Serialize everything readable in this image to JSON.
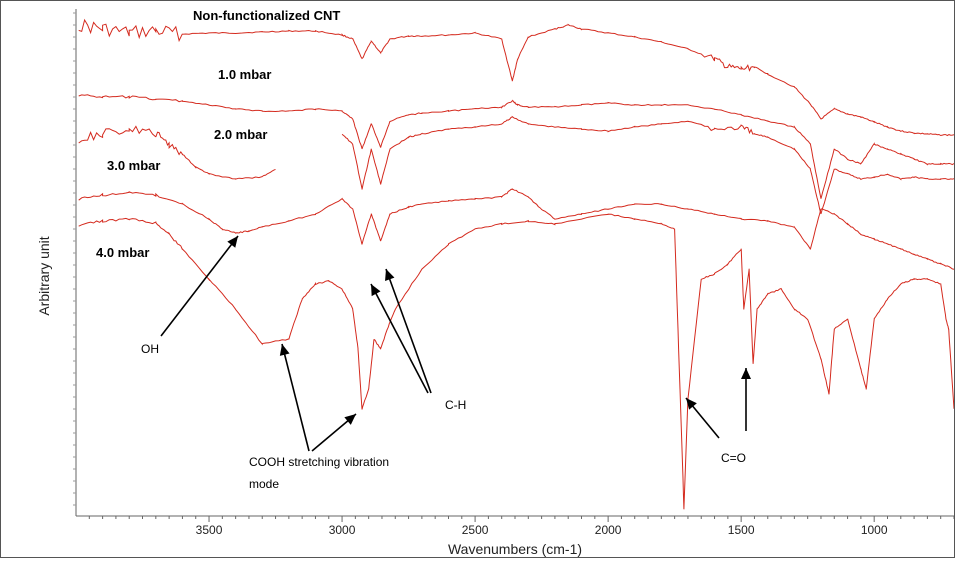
{
  "chart_data": {
    "type": "line",
    "title": "",
    "xlabel": "Wavenumbers (cm-1)",
    "ylabel": "Arbitrary unit",
    "xlim": [
      4000,
      700
    ],
    "x_reversed": true,
    "x_ticks": [
      "3500",
      "3000",
      "2500",
      "2000",
      "1500",
      "1000"
    ],
    "x_tick_values": [
      3500,
      3000,
      2500,
      2000,
      1500,
      1000
    ],
    "y_ticks_shown": false,
    "grid": false,
    "line_color": "#d42a1e",
    "series": [
      {
        "name": "Non-functionalized CNT",
        "x": [
          3990,
          3900,
          3800,
          3700,
          3600,
          3500,
          3400,
          3300,
          3200,
          3100,
          3000,
          2960,
          2925,
          2890,
          2855,
          2820,
          2750,
          2700,
          2600,
          2500,
          2400,
          2360,
          2340,
          2300,
          2200,
          2150,
          2100,
          2000,
          1900,
          1800,
          1700,
          1600,
          1550,
          1500,
          1450,
          1400,
          1300,
          1240,
          1200,
          1150,
          1100,
          1050,
          1000,
          950,
          900,
          850,
          800,
          750,
          700
        ],
        "y": [
          16,
          20,
          24,
          22,
          25,
          24,
          24,
          23,
          22,
          22,
          26,
          30,
          50,
          32,
          44,
          30,
          27,
          27,
          26,
          24,
          30,
          72,
          50,
          28,
          20,
          16,
          20,
          24,
          28,
          33,
          40,
          50,
          58,
          60,
          58,
          65,
          78,
          95,
          110,
          100,
          105,
          108,
          113,
          118,
          122,
          124,
          125,
          126,
          126
        ]
      },
      {
        "name": "1.0 mbar",
        "x": [
          3990,
          3900,
          3800,
          3700,
          3600,
          3500,
          3400,
          3300,
          3200,
          3100,
          3000,
          2960,
          2925,
          2890,
          2855,
          2820,
          2750,
          2700,
          2600,
          2500,
          2400,
          2360,
          2340,
          2300,
          2200,
          2100,
          2000,
          1900,
          1800,
          1700,
          1600,
          1500,
          1400,
          1300,
          1240,
          1200,
          1150,
          1100,
          1050,
          1000,
          950,
          900,
          850,
          800,
          750,
          700
        ],
        "y": [
          86,
          88,
          88,
          90,
          92,
          96,
          100,
          102,
          102,
          100,
          102,
          110,
          140,
          115,
          138,
          112,
          106,
          104,
          102,
          100,
          98,
          92,
          96,
          98,
          98,
          96,
          94,
          96,
          96,
          96,
          100,
          106,
          112,
          118,
          135,
          190,
          140,
          150,
          155,
          135,
          140,
          145,
          150,
          155,
          155,
          155
        ]
      },
      {
        "name": "2.0 mbar",
        "x": [
          3990,
          3900,
          3800,
          3700,
          3650,
          3600,
          3550,
          3500,
          3400,
          3300,
          3250,
          3150,
          3000,
          2960,
          2925,
          2890,
          2855,
          2820,
          2750,
          2700,
          2600,
          2500,
          2400,
          2360,
          2300,
          2200,
          2100,
          2000,
          1900,
          1800,
          1700,
          1600,
          1500,
          1450,
          1400,
          1300,
          1240,
          1200,
          1150,
          1100,
          1050,
          1000,
          950,
          900,
          850,
          800,
          750,
          700
        ],
        "y": [
          130,
          125,
          120,
          125,
          135,
          145,
          158,
          165,
          170,
          168,
          160,
          null,
          125,
          135,
          180,
          140,
          175,
          140,
          128,
          125,
          120,
          118,
          115,
          108,
          115,
          118,
          120,
          122,
          118,
          115,
          112,
          120,
          118,
          125,
          128,
          140,
          160,
          205,
          160,
          165,
          170,
          168,
          165,
          170,
          168,
          170,
          170,
          170
        ]
      },
      {
        "name": "3.0 mbar",
        "x": [
          3990,
          3900,
          3800,
          3700,
          3600,
          3500,
          3450,
          3400,
          3350,
          3300,
          3200,
          3100,
          3000,
          2960,
          2925,
          2890,
          2855,
          2820,
          2750,
          2700,
          2600,
          2500,
          2400,
          2360,
          2300,
          2250,
          2200,
          2100,
          2000,
          1900,
          1800,
          1700,
          1600,
          1500,
          1400,
          1300,
          1240,
          1200,
          1150,
          1100,
          1050,
          1000,
          950,
          900,
          850,
          800,
          750,
          700
        ],
        "y": [
          190,
          186,
          184,
          186,
          195,
          210,
          220,
          224,
          222,
          218,
          212,
          205,
          190,
          200,
          235,
          205,
          232,
          205,
          198,
          195,
          192,
          190,
          188,
          180,
          188,
          200,
          210,
          205,
          200,
          195,
          195,
          200,
          205,
          210,
          212,
          218,
          240,
          200,
          205,
          215,
          225,
          230,
          235,
          240,
          245,
          250,
          255,
          260
        ]
      },
      {
        "name": "4.0 mbar",
        "x": [
          3990,
          3900,
          3800,
          3700,
          3650,
          3600,
          3500,
          3400,
          3300,
          3200,
          3150,
          3100,
          3050,
          3000,
          2960,
          2940,
          2925,
          2900,
          2880,
          2855,
          2830,
          2800,
          2700,
          2600,
          2500,
          2400,
          2300,
          2200,
          2000,
          1900,
          1800,
          1750,
          1730,
          1715,
          1700,
          1650,
          1600,
          1550,
          1500,
          1490,
          1470,
          1455,
          1440,
          1400,
          1350,
          1300,
          1250,
          1200,
          1170,
          1150,
          1100,
          1050,
          1030,
          1000,
          950,
          900,
          850,
          800,
          750,
          730,
          720,
          700
        ],
        "y": [
          216,
          212,
          210,
          214,
          225,
          240,
          270,
          300,
          335,
          330,
          290,
          275,
          272,
          280,
          300,
          340,
          400,
          380,
          330,
          340,
          320,
          300,
          260,
          235,
          220,
          215,
          212,
          215,
          205,
          210,
          215,
          220,
          380,
          500,
          390,
          270,
          265,
          255,
          240,
          300,
          260,
          355,
          300,
          285,
          280,
          300,
          310,
          350,
          385,
          320,
          310,
          360,
          380,
          310,
          290,
          275,
          270,
          270,
          275,
          310,
          320,
          400
        ]
      }
    ],
    "annotations": {
      "series_labels": [
        "Non-functionalized CNT",
        "1.0 mbar",
        "2.0 mbar",
        "3.0 mbar",
        "4.0 mbar"
      ],
      "peak_labels": [
        "OH",
        "C-H",
        "COOH stretching vibration",
        "mode",
        "C=O"
      ]
    }
  }
}
